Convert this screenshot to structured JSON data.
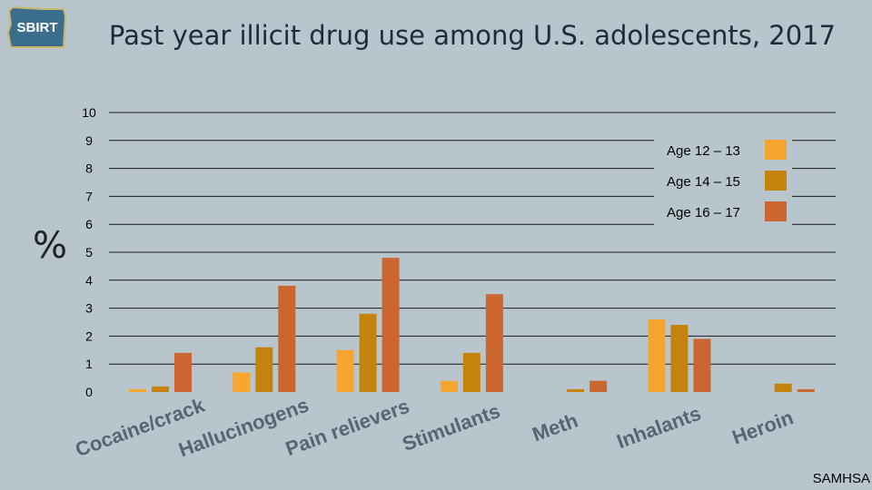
{
  "logo": {
    "text": "SBIRT"
  },
  "source": "SAMHSA",
  "yunit": "%",
  "colors": {
    "age_12_13": "#f6a52e",
    "age_14_15": "#c5820d",
    "age_16_17": "#cc6630",
    "background": "#b9c5cc"
  },
  "chart_data": {
    "type": "bar",
    "title": "Past year illicit drug use among U.S. adolescents, 2017",
    "ylabel": "%",
    "ylim": [
      0,
      10
    ],
    "yticks": [
      0,
      1,
      2,
      3,
      4,
      5,
      6,
      7,
      8,
      9,
      10
    ],
    "grid": true,
    "legend_position": "top-right",
    "categories": [
      "Cocaine/crack",
      "Hallucinogens",
      "Pain relievers",
      "Stimulants",
      "Meth",
      "Inhalants",
      "Heroin"
    ],
    "series": [
      {
        "name": "Age 12 – 13",
        "color": "#f6a52e",
        "values": [
          0.1,
          0.7,
          1.5,
          0.4,
          0.0,
          2.6,
          0.0
        ]
      },
      {
        "name": "Age 14 – 15",
        "color": "#c5820d",
        "values": [
          0.2,
          1.6,
          2.8,
          1.4,
          0.1,
          2.4,
          0.3
        ]
      },
      {
        "name": "Age 16 – 17",
        "color": "#cc6630",
        "values": [
          1.4,
          3.8,
          4.8,
          3.5,
          0.4,
          1.9,
          0.1
        ]
      }
    ]
  }
}
